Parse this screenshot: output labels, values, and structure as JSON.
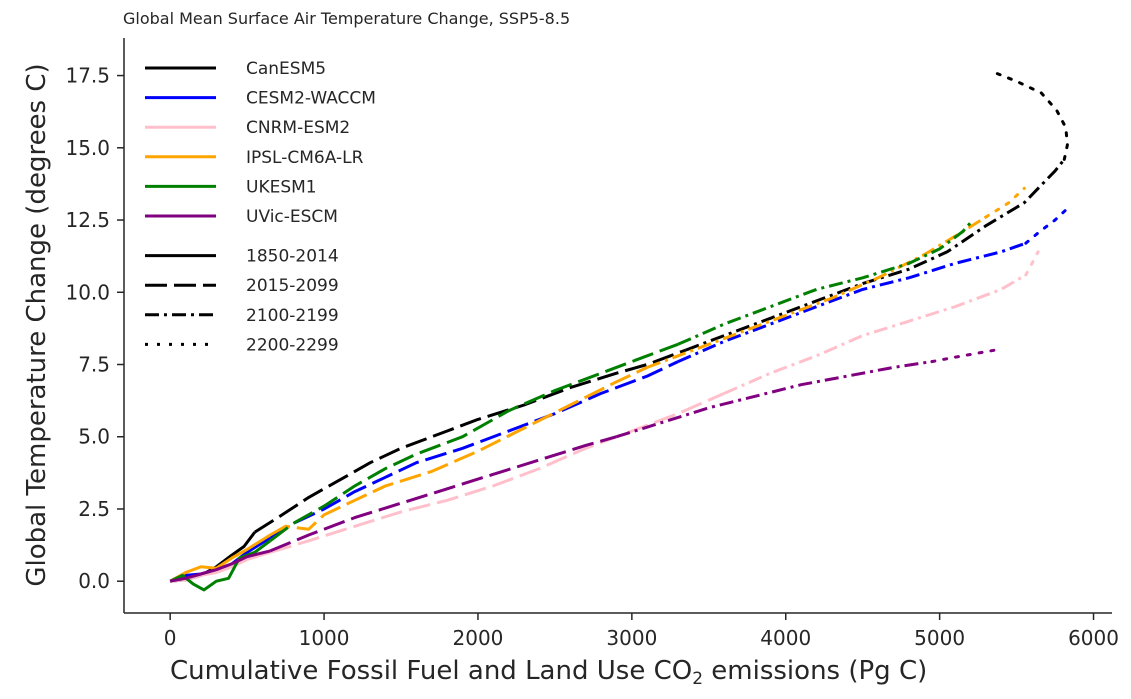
{
  "chart_data": {
    "type": "line",
    "title": "Global Mean Surface Air Temperature Change, SSP5-8.5",
    "xlabel_pre": "Cumulative Fossil Fuel and Land Use CO",
    "xlabel_sub": "2",
    "xlabel_post": " emissions (Pg C)",
    "ylabel": "Global Temperature Change (degrees C)",
    "xlim": [
      -300,
      6120
    ],
    "ylim": [
      -1.1,
      18.8
    ],
    "xticks": [
      "0",
      "1000",
      "2000",
      "3000",
      "4000",
      "5000",
      "6000"
    ],
    "xtick_values": [
      0,
      1000,
      2000,
      3000,
      4000,
      5000,
      6000
    ],
    "yticks": [
      "0.0",
      "2.5",
      "5.0",
      "7.5",
      "10.0",
      "12.5",
      "15.0",
      "17.5"
    ],
    "ytick_values": [
      0,
      2.5,
      5,
      7.5,
      10,
      12.5,
      15,
      17.5
    ],
    "grid": false,
    "legend_position": "top-left",
    "series": [
      {
        "name": "CanESM5",
        "color": "#000000",
        "periods": [
          [
            [
              0,
              0
            ],
            [
              100,
              0.05
            ],
            [
              200,
              0.2
            ],
            [
              300,
              0.5
            ],
            [
              400,
              0.9
            ],
            [
              480,
              1.2
            ],
            [
              550,
              1.7
            ]
          ],
          [
            [
              550,
              1.7
            ],
            [
              700,
              2.2
            ],
            [
              900,
              2.9
            ],
            [
              1100,
              3.5
            ],
            [
              1300,
              4.1
            ],
            [
              1500,
              4.6
            ],
            [
              1800,
              5.2
            ],
            [
              2000,
              5.6
            ],
            [
              2300,
              6.1
            ],
            [
              2600,
              6.7
            ],
            [
              2900,
              7.2
            ],
            [
              3100,
              7.5
            ],
            [
              3350,
              8.0
            ]
          ],
          [
            [
              3350,
              8.0
            ],
            [
              3600,
              8.5
            ],
            [
              3900,
              9.1
            ],
            [
              4200,
              9.7
            ],
            [
              4500,
              10.3
            ],
            [
              4800,
              10.8
            ],
            [
              5050,
              11.4
            ],
            [
              5300,
              12.3
            ],
            [
              5550,
              13.1
            ],
            [
              5750,
              14.2
            ],
            [
              5810,
              14.6
            ]
          ],
          [
            [
              5810,
              14.6
            ],
            [
              5830,
              15.1
            ],
            [
              5820,
              15.7
            ],
            [
              5760,
              16.3
            ],
            [
              5660,
              16.9
            ],
            [
              5500,
              17.3
            ],
            [
              5360,
              17.6
            ]
          ]
        ]
      },
      {
        "name": "CESM2-WACCM",
        "color": "#0000ff",
        "periods": [
          [
            [
              0,
              0
            ],
            [
              100,
              0.2
            ],
            [
              200,
              0.25
            ],
            [
              300,
              0.4
            ],
            [
              400,
              0.6
            ],
            [
              500,
              1.0
            ],
            [
              650,
              1.5
            ]
          ],
          [
            [
              650,
              1.5
            ],
            [
              800,
              2.0
            ],
            [
              1000,
              2.5
            ],
            [
              1200,
              3.1
            ],
            [
              1400,
              3.6
            ],
            [
              1600,
              4.1
            ],
            [
              1900,
              4.6
            ],
            [
              2200,
              5.2
            ],
            [
              2500,
              5.8
            ],
            [
              2800,
              6.5
            ],
            [
              3100,
              7.1
            ],
            [
              3300,
              7.6
            ]
          ],
          [
            [
              3300,
              7.6
            ],
            [
              3600,
              8.3
            ],
            [
              3900,
              8.9
            ],
            [
              4200,
              9.5
            ],
            [
              4500,
              10.1
            ],
            [
              4800,
              10.5
            ],
            [
              5100,
              11.0
            ],
            [
              5400,
              11.4
            ],
            [
              5560,
              11.7
            ]
          ],
          [
            [
              5560,
              11.7
            ],
            [
              5650,
              12.1
            ],
            [
              5750,
              12.5
            ],
            [
              5830,
              12.9
            ]
          ]
        ]
      },
      {
        "name": "CNRM-ESM2",
        "color": "#ffc0cb",
        "periods": [
          [
            [
              0,
              0
            ],
            [
              100,
              0.05
            ],
            [
              200,
              0.2
            ],
            [
              300,
              0.3
            ],
            [
              400,
              0.5
            ],
            [
              500,
              0.75
            ],
            [
              650,
              1.0
            ]
          ],
          [
            [
              650,
              1.0
            ],
            [
              900,
              1.4
            ],
            [
              1200,
              1.9
            ],
            [
              1500,
              2.4
            ],
            [
              1800,
              2.8
            ],
            [
              2100,
              3.3
            ],
            [
              2400,
              3.9
            ],
            [
              2700,
              4.6
            ],
            [
              3000,
              5.2
            ],
            [
              3300,
              5.8
            ],
            [
              3600,
              6.5
            ]
          ],
          [
            [
              3600,
              6.5
            ],
            [
              3900,
              7.2
            ],
            [
              4200,
              7.8
            ],
            [
              4500,
              8.5
            ],
            [
              4800,
              9.0
            ],
            [
              5100,
              9.5
            ],
            [
              5400,
              10.1
            ],
            [
              5560,
              10.6
            ]
          ],
          [
            [
              5560,
              10.6
            ],
            [
              5600,
              11.0
            ],
            [
              5640,
              11.4
            ]
          ]
        ]
      },
      {
        "name": "IPSL-CM6A-LR",
        "color": "#ffa500",
        "periods": [
          [
            [
              0,
              0
            ],
            [
              100,
              0.3
            ],
            [
              200,
              0.5
            ],
            [
              300,
              0.45
            ],
            [
              400,
              0.8
            ],
            [
              500,
              1.1
            ],
            [
              650,
              1.6
            ]
          ],
          [
            [
              650,
              1.6
            ],
            [
              750,
              1.9
            ],
            [
              900,
              1.8
            ],
            [
              1000,
              2.3
            ],
            [
              1200,
              2.8
            ],
            [
              1400,
              3.3
            ],
            [
              1700,
              3.8
            ],
            [
              2000,
              4.5
            ],
            [
              2300,
              5.3
            ],
            [
              2600,
              6.1
            ],
            [
              2900,
              6.9
            ],
            [
              3100,
              7.4
            ]
          ],
          [
            [
              3100,
              7.4
            ],
            [
              3400,
              8.0
            ],
            [
              3700,
              8.6
            ],
            [
              4000,
              9.2
            ],
            [
              4300,
              9.8
            ],
            [
              4600,
              10.5
            ],
            [
              4900,
              11.3
            ],
            [
              5150,
              12.1
            ],
            [
              5300,
              12.6
            ]
          ],
          [
            [
              5300,
              12.6
            ],
            [
              5450,
              13.1
            ],
            [
              5550,
              13.6
            ]
          ]
        ]
      },
      {
        "name": "UKESM1",
        "color": "#008000",
        "periods": [
          [
            [
              0,
              0
            ],
            [
              80,
              0.2
            ],
            [
              150,
              -0.1
            ],
            [
              220,
              -0.3
            ],
            [
              300,
              0.0
            ],
            [
              380,
              0.1
            ],
            [
              450,
              0.8
            ],
            [
              550,
              1.0
            ],
            [
              650,
              1.4
            ]
          ],
          [
            [
              650,
              1.4
            ],
            [
              800,
              2.0
            ],
            [
              1000,
              2.6
            ],
            [
              1200,
              3.3
            ],
            [
              1400,
              3.9
            ],
            [
              1600,
              4.4
            ],
            [
              1900,
              5.0
            ],
            [
              2200,
              5.9
            ],
            [
              2500,
              6.6
            ],
            [
              2800,
              7.2
            ],
            [
              3100,
              7.8
            ],
            [
              3300,
              8.2
            ]
          ],
          [
            [
              3300,
              8.2
            ],
            [
              3600,
              8.9
            ],
            [
              3900,
              9.5
            ],
            [
              4200,
              10.1
            ],
            [
              4500,
              10.5
            ],
            [
              4800,
              11.0
            ],
            [
              5000,
              11.5
            ],
            [
              5150,
              12.1
            ],
            [
              5200,
              12.4
            ]
          ]
        ]
      },
      {
        "name": "UVic-ESCM",
        "color": "#800080",
        "periods": [
          [
            [
              0,
              0
            ],
            [
              100,
              0.1
            ],
            [
              200,
              0.25
            ],
            [
              300,
              0.4
            ],
            [
              400,
              0.6
            ],
            [
              500,
              0.85
            ],
            [
              650,
              1.05
            ]
          ],
          [
            [
              650,
              1.05
            ],
            [
              900,
              1.6
            ],
            [
              1200,
              2.2
            ],
            [
              1500,
              2.7
            ],
            [
              1800,
              3.2
            ],
            [
              2100,
              3.7
            ],
            [
              2400,
              4.2
            ],
            [
              2700,
              4.7
            ],
            [
              2900,
              5.0
            ]
          ],
          [
            [
              2900,
              5.0
            ],
            [
              3200,
              5.5
            ],
            [
              3500,
              6.0
            ],
            [
              3800,
              6.4
            ],
            [
              4100,
              6.8
            ],
            [
              4400,
              7.1
            ],
            [
              4700,
              7.4
            ],
            [
              4950,
              7.6
            ]
          ],
          [
            [
              4950,
              7.6
            ],
            [
              5150,
              7.8
            ],
            [
              5360,
              8.0
            ]
          ]
        ]
      }
    ],
    "period_legend": [
      "1850-2014",
      "2015-2099",
      "2100-2199",
      "2200-2299"
    ]
  }
}
